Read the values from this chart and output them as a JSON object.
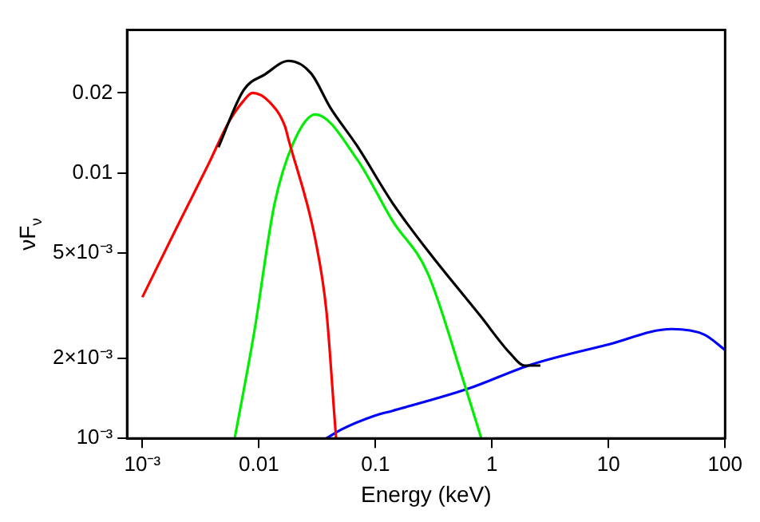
{
  "chart_data": {
    "type": "line",
    "xlabel": "Energy (keV)",
    "ylabel": "νF$_{ν}$",
    "log": "xy",
    "grid": false,
    "legend": false,
    "marker": "none",
    "line_style": "solid",
    "xlim": [
      0.00074,
      100
    ],
    "ylim": [
      0.001,
      0.0345
    ],
    "xticks": [
      {
        "value": 0.001,
        "label": "10⁻³"
      },
      0.01,
      0.1,
      1,
      10,
      100
    ],
    "yticks": [
      {
        "value": 0.001,
        "label": "10⁻³"
      },
      {
        "value": 0.002,
        "label": "2×10⁻³"
      },
      {
        "value": 0.005,
        "label": "5×10⁻³"
      },
      0.01,
      0.02
    ],
    "series": [
      {
        "color": "#000000",
        "x": [
          0.0045,
          0.0074,
          0.0113,
          0.018,
          0.028,
          0.041,
          0.069,
          0.14,
          0.28,
          0.79,
          1.43,
          1.9,
          2.6
        ],
        "values": [
          0.0125,
          0.0205,
          0.0235,
          0.0264,
          0.0237,
          0.0176,
          0.0127,
          0.0077,
          0.0051,
          0.0029,
          0.00209,
          0.00188,
          0.00188
        ]
      },
      {
        "color": "#ff0000",
        "x": [
          0.001,
          0.002,
          0.0037,
          0.0055,
          0.0074,
          0.0088,
          0.0123,
          0.0167,
          0.018,
          0.0305,
          0.038,
          0.045,
          0.046
        ],
        "values": [
          0.0034,
          0.0063,
          0.0108,
          0.0155,
          0.0187,
          0.02,
          0.0185,
          0.015,
          0.0133,
          0.0056,
          0.003,
          0.00113,
          0.001
        ]
      },
      {
        "color": "#00ee00",
        "x": [
          0.0062,
          0.0091,
          0.0135,
          0.0195,
          0.0305,
          0.069,
          0.14,
          0.28,
          0.58,
          0.81
        ],
        "values": [
          0.001,
          0.0025,
          0.0075,
          0.0128,
          0.0166,
          0.0113,
          0.0066,
          0.0042,
          0.0016,
          0.001
        ]
      },
      {
        "color": "#0000ff",
        "x": [
          0.038,
          0.051,
          0.1,
          0.14,
          0.63,
          2.2,
          9.7,
          35,
          66,
          100
        ],
        "values": [
          0.001,
          0.00108,
          0.00122,
          0.00127,
          0.00154,
          0.0019,
          0.00225,
          0.00258,
          0.00246,
          0.00215
        ]
      }
    ]
  }
}
